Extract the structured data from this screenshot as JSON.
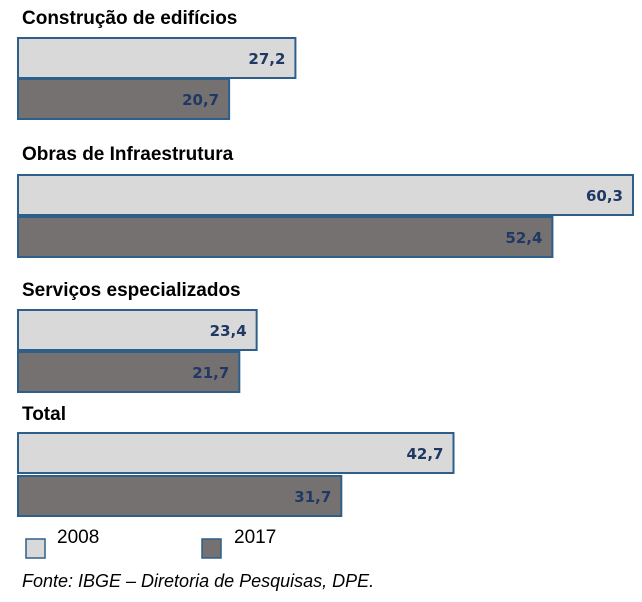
{
  "chart_data": {
    "type": "bar",
    "orientation": "horizontal",
    "categories": [
      "Construção de edifícios",
      "Obras de Infraestrutura",
      "Serviços especializados",
      "Total"
    ],
    "series": [
      {
        "name": "2008",
        "values": [
          "27,2",
          "60,3",
          "23,4",
          "42,7"
        ],
        "numeric": [
          27.2,
          60.3,
          23.4,
          42.7
        ],
        "color": "#d9d9d9"
      },
      {
        "name": "2017",
        "values": [
          "20,7",
          "52,4",
          "21,7",
          "31,7"
        ],
        "numeric": [
          20.7,
          52.4,
          21.7,
          31.7
        ],
        "color": "#767171"
      }
    ],
    "xlim": [
      0,
      60.3
    ],
    "grid": false,
    "legend_position": "bottom",
    "bar_border_color": "#2e5f8a",
    "label_color": "#1f3864"
  },
  "source": "Fonte: IBGE – Diretoria de Pesquisas, DPE."
}
